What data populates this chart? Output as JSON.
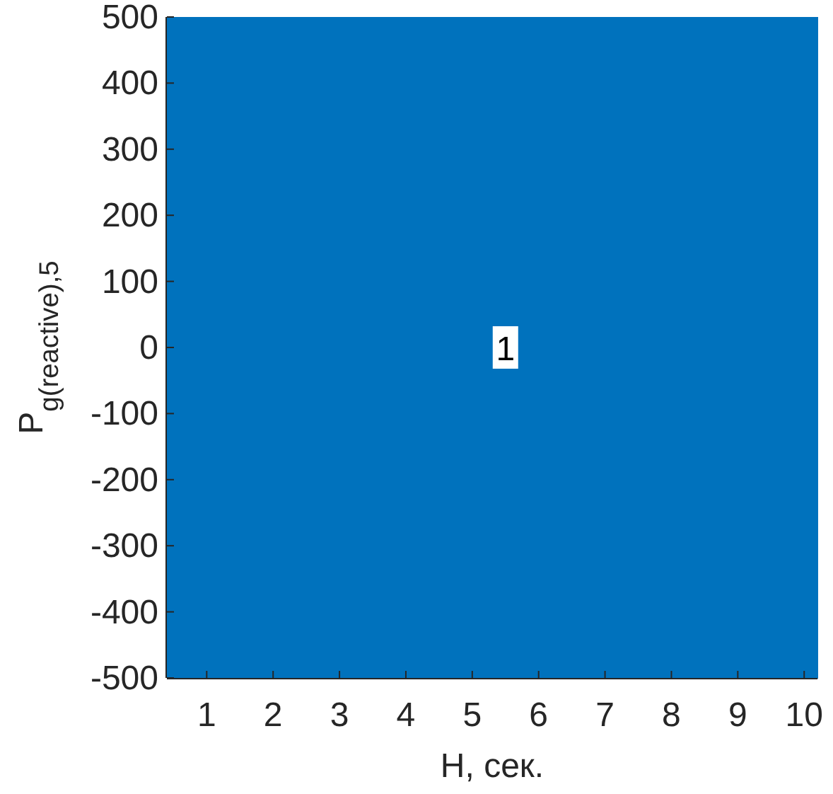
{
  "chart_data": {
    "type": "area",
    "xlabel": "H, сек.",
    "ylabel": "P$_{g(reactive),5}$",
    "x": [
      0.4,
      10.2
    ],
    "series": [
      {
        "color": "#0072bd",
        "values": [
          500,
          500
        ]
      },
      {
        "color": "#0072bd",
        "values": [
          -500,
          -500
        ]
      }
    ],
    "xlim": [
      0.4,
      10.2
    ],
    "xticks": [
      1,
      2,
      3,
      4,
      5,
      6,
      7,
      8,
      9,
      10
    ],
    "ylim": [
      -500,
      500
    ],
    "yticks": [
      -500,
      -400,
      -300,
      -200,
      -100,
      0,
      100,
      200,
      300,
      400,
      500
    ],
    "annotations": [
      {
        "text": "1",
        "x": 5.5,
        "y": 0
      }
    ]
  }
}
